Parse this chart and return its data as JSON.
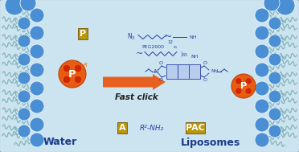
{
  "bg_color": "#cce4f0",
  "border_color": "#8899aa",
  "lipid_ball_color": "#4a8fd4",
  "tail_color": "#7aacac",
  "orange_color": "#e85c10",
  "orange_dark": "#c04008",
  "orange_spot": "#cc2200",
  "label_bg": "#b8950a",
  "label_text": "#ffffff",
  "chem_color": "#2840a0",
  "arrow_color": "#e86020",
  "water_label": "Water",
  "liposomes_label": "Liposomes",
  "fast_click": "Fast click",
  "p_label": "P",
  "a_label": "A",
  "pac_label": "PAC",
  "r2nh2": "R²-NH₂",
  "peg_label": "PEG2000",
  "n3_label": "N₃"
}
